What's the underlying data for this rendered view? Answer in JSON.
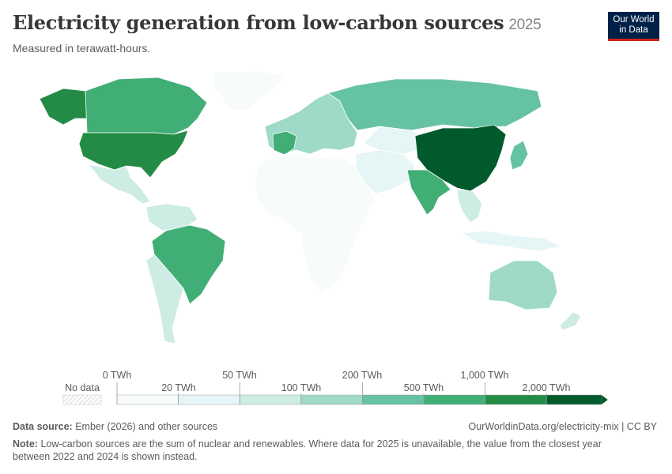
{
  "header": {
    "title": "Electricity generation from low-carbon sources",
    "year": "2025",
    "subtitle": "Measured in terawatt-hours."
  },
  "logo": {
    "line1": "Our World",
    "line2": "in Data"
  },
  "legend": {
    "no_data_label": "No data",
    "upper_labels": [
      "0 TWh",
      "50 TWh",
      "200 TWh",
      "1,000 TWh"
    ],
    "lower_labels": [
      "20 TWh",
      "100 TWh",
      "500 TWh",
      "2,000 TWh"
    ],
    "colors": [
      "#f7fcfa",
      "#e6f5f6",
      "#cdece4",
      "#9fd9c8",
      "#66c2a4",
      "#41ae76",
      "#238b45",
      "#005a2c"
    ]
  },
  "footer": {
    "source_label": "Data source:",
    "source_text": "Ember (2026) and other sources",
    "url": "OurWorldinData.org/electricity-mix | CC BY",
    "note_label": "Note:",
    "note_text": "Low-carbon sources are the sum of nuclear and renewables. Where data for 2025 is unavailable, the value from the closest year between 2022 and 2024 is shown instead."
  },
  "regions": [
    {
      "name": "China",
      "color": "#005a2c"
    },
    {
      "name": "United States",
      "color": "#238b45"
    },
    {
      "name": "Alaska",
      "color": "#238b45"
    },
    {
      "name": "Canada",
      "color": "#41ae76"
    },
    {
      "name": "Brazil",
      "color": "#41ae76"
    },
    {
      "name": "India",
      "color": "#41ae76"
    },
    {
      "name": "France",
      "color": "#41ae76"
    },
    {
      "name": "Russia",
      "color": "#66c2a4"
    },
    {
      "name": "Japan",
      "color": "#66c2a4"
    },
    {
      "name": "Europe",
      "color": "#9fd9c8"
    },
    {
      "name": "Australia",
      "color": "#9fd9c8"
    },
    {
      "name": "Mexico",
      "color": "#cdece4"
    },
    {
      "name": "Argentina",
      "color": "#cdece4"
    },
    {
      "name": "Africa",
      "color": "#f7fcfa"
    },
    {
      "name": "Greenland",
      "color": "#f7fcfa"
    },
    {
      "name": "Middle East",
      "color": "#e6f5f6"
    },
    {
      "name": "Southeast Asia",
      "color": "#cdece4"
    },
    {
      "name": "Indonesia",
      "color": "#e6f5f6"
    },
    {
      "name": "New Zealand",
      "color": "#cdece4"
    }
  ]
}
